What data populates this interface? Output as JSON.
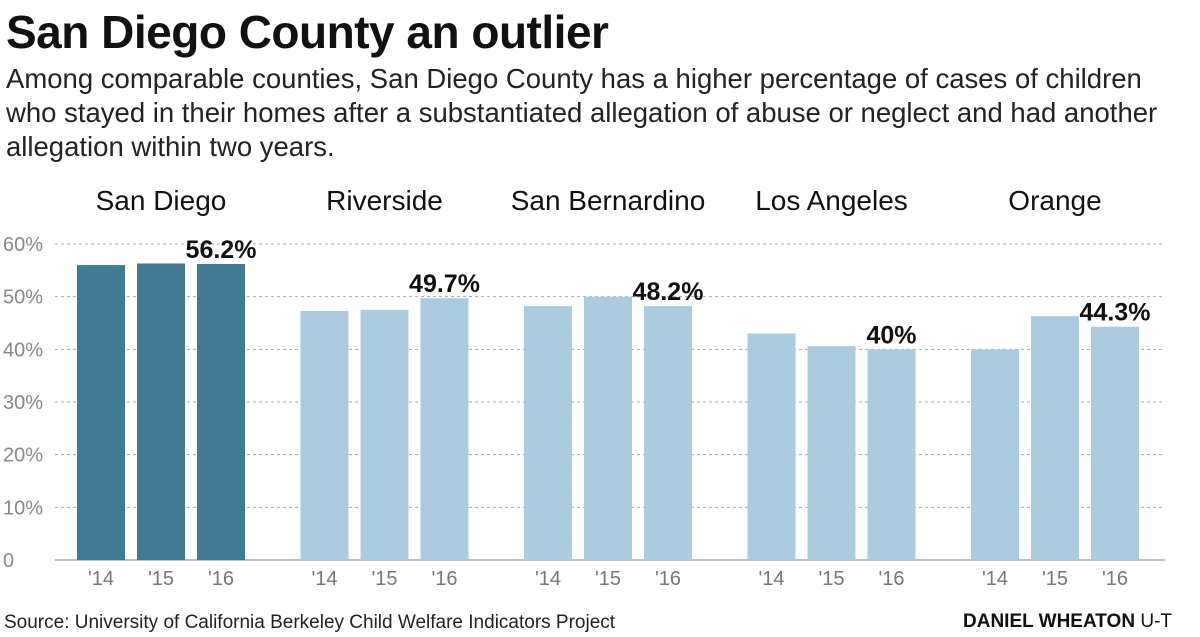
{
  "title": "San Diego County an outlier",
  "subtitle": "Among comparable counties, San Diego County has a higher percentage of cases of children who stayed in their homes after a substantiated allegation of abuse or neglect and had another allegation within two years.",
  "source": "Source: University of California Berkeley Child Welfare Indicators Project",
  "credit_name": "DANIEL WHEATON",
  "credit_org": "U-T",
  "colors": {
    "highlight": "#427a94",
    "other": "#adcbdf",
    "grid": "#aaaaaa"
  },
  "chart_data": {
    "type": "bar",
    "ylim": [
      0,
      60
    ],
    "yticks": [
      0,
      10,
      20,
      30,
      40,
      50,
      60
    ],
    "ytick_labels": [
      "0",
      "10%",
      "20%",
      "30%",
      "40%",
      "50%",
      "60%"
    ],
    "grid": true,
    "categories": [
      "'14",
      "'15",
      "'16"
    ],
    "highlight_group": "San Diego",
    "groups": [
      {
        "name": "San Diego",
        "values": [
          56.0,
          56.3,
          56.2
        ],
        "label": "56.2%"
      },
      {
        "name": "Riverside",
        "values": [
          47.3,
          47.5,
          49.7
        ],
        "label": "49.7%"
      },
      {
        "name": "San Bernardino",
        "values": [
          48.2,
          50.0,
          48.2
        ],
        "label": "48.2%"
      },
      {
        "name": "Los Angeles",
        "values": [
          43.0,
          40.6,
          40.0
        ],
        "label": "40%"
      },
      {
        "name": "Orange",
        "values": [
          40.0,
          46.3,
          44.3
        ],
        "label": "44.3%"
      }
    ]
  }
}
